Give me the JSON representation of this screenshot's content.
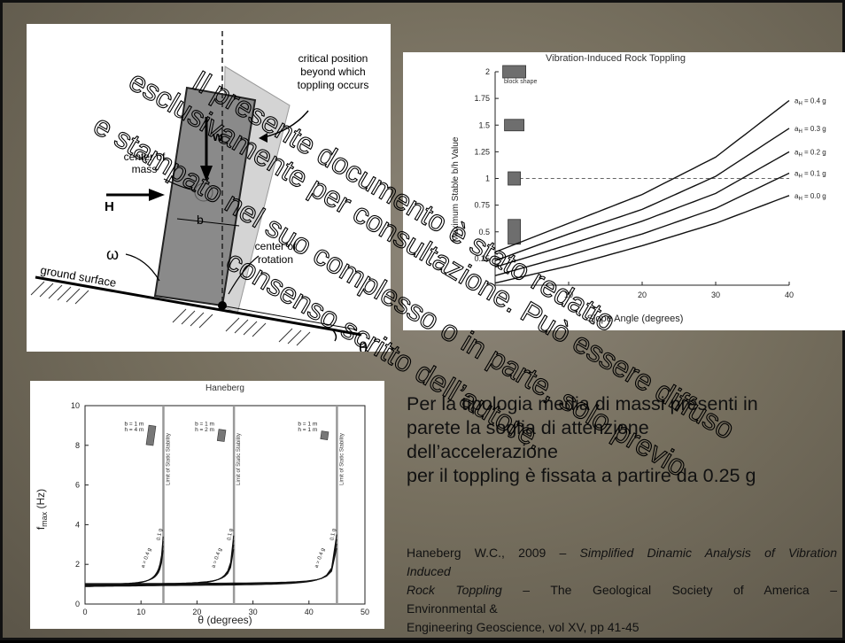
{
  "toppling_diagram": {
    "critical_label": [
      "critical position",
      "beyond which",
      "toppling occurs"
    ],
    "w_label": "w",
    "center_of_mass_label": [
      "center of",
      "mass"
    ],
    "h_label": "H",
    "b_label": "b",
    "omega_label": "ω",
    "center_of_rotation_label": [
      "center of",
      "rotation"
    ],
    "ground_label": "ground surface",
    "theta_label": "θ"
  },
  "chart_data": [
    {
      "type": "line",
      "title": "Vibration-Induced Rock Toppling",
      "xlabel": "Slope Angle (degrees)",
      "ylabel": "Maximum Stable b/h Value",
      "xlim": [
        0,
        40
      ],
      "ylim": [
        0,
        2
      ],
      "x_ticks": [
        "10",
        "20",
        "30",
        "40"
      ],
      "y_ticks": [
        "0.25",
        "0.5",
        "0.75",
        "1",
        "1.25",
        "1.5",
        "1.75",
        "2"
      ],
      "block_shape_label": "block shape",
      "series": [
        {
          "name": "aH = 0.4 g",
          "label_main": "a",
          "label_sub": "H",
          "label_rest": " = 0.4 g",
          "x": [
            0,
            10,
            20,
            30,
            40
          ],
          "y": [
            0.31,
            0.58,
            0.85,
            1.2,
            1.73
          ]
        },
        {
          "name": "aH = 0.3 g",
          "label_main": "a",
          "label_sub": "H",
          "label_rest": " = 0.3 g",
          "x": [
            0,
            10,
            20,
            30,
            40
          ],
          "y": [
            0.23,
            0.48,
            0.71,
            1.02,
            1.47
          ]
        },
        {
          "name": "aH = 0.2 g",
          "label_main": "a",
          "label_sub": "H",
          "label_rest": " = 0.2 g",
          "x": [
            0,
            10,
            20,
            30,
            40
          ],
          "y": [
            0.17,
            0.38,
            0.6,
            0.86,
            1.25
          ]
        },
        {
          "name": "aH = 0.1 g",
          "label_main": "a",
          "label_sub": "H",
          "label_rest": " = 0.1 g",
          "x": [
            0,
            10,
            20,
            30,
            40
          ],
          "y": [
            0.09,
            0.28,
            0.48,
            0.72,
            1.05
          ]
        },
        {
          "name": "aH = 0.0 g",
          "label_main": "a",
          "label_sub": "H",
          "label_rest": " = 0.0 g",
          "x": [
            0,
            10,
            20,
            30,
            40
          ],
          "y": [
            0.02,
            0.18,
            0.37,
            0.58,
            0.84
          ]
        }
      ],
      "reference_line_y": 1,
      "grid": false
    },
    {
      "type": "line",
      "title": "Haneberg",
      "xlabel": "θ (degrees)",
      "ylabel_main": "f",
      "ylabel_sub": "max",
      "ylabel_rest": " (Hz)",
      "xlim": [
        0,
        50
      ],
      "ylim": [
        0,
        10
      ],
      "x_ticks": [
        "0",
        "10",
        "20",
        "30",
        "40",
        "50"
      ],
      "y_ticks": [
        "0",
        "2",
        "4",
        "6",
        "8",
        "10"
      ],
      "limit_label": "Limit of Static Stability",
      "groups": [
        {
          "b_label": "b = 1 m",
          "h_label": "h = 4 m",
          "limit_angle": 14,
          "curve_label_top": "a = 0.4 g",
          "curve_label_bottom": "0.1 g",
          "a_values": [
            0.4,
            0.3,
            0.2,
            0.1
          ]
        },
        {
          "b_label": "b = 1 m",
          "h_label": "h = 2 m",
          "limit_angle": 26.6,
          "curve_label_top": "a = 0.4 g",
          "curve_label_bottom": "0.1 g",
          "a_values": [
            0.4,
            0.3,
            0.2,
            0.1
          ]
        },
        {
          "b_label": "b = 1 m",
          "h_label": "h = 1 m",
          "limit_angle": 45,
          "curve_label_top": "a = 0.4 g",
          "curve_label_bottom": "0.1 g",
          "a_values": [
            0.4,
            0.3,
            0.2,
            0.1
          ]
        }
      ]
    }
  ],
  "body_text": [
    "Per la tipologia media di massi presenti in",
    "parete la soglia di attenzione",
    "dell’accelerazione",
    "per il toppling è fissata a partire da 0.25 g"
  ],
  "reference": {
    "line1_plain": "Haneberg W.C., 2009 – ",
    "line1_italic": "Simplified Dinamic Analysis of Vibration",
    "line2_italic": "Induced",
    "line3_italic": "Rock Toppling",
    "line3_plain": " – The Geological Society of America –",
    "line4": "Environmental &",
    "line5": "Engineering Geoscience, vol XV, pp 41-45"
  },
  "watermark": [
    "Il presente documento è stato redatto",
    "esclusivamente per consultazione. Può essere diffuso",
    "e stampato nel suo complesso o in parte, solo previo",
    "consenso scritto dell’autore."
  ]
}
